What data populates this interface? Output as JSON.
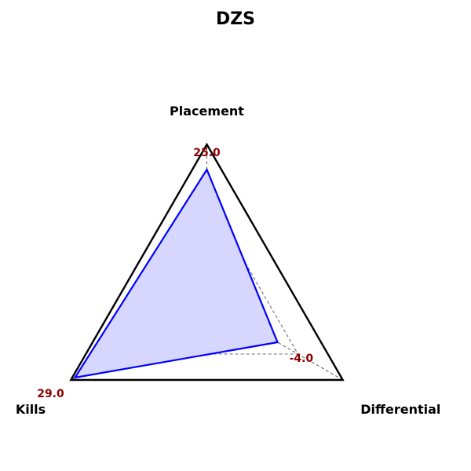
{
  "chart_data": {
    "type": "radar",
    "title": "DZS",
    "axes": [
      "Placement",
      "Differential",
      "Kills"
    ],
    "values": [
      25.0,
      -4.0,
      29.0
    ],
    "value_labels": [
      "25.0",
      "-4.0",
      "29.0"
    ],
    "normalized_values": [
      0.84,
      0.52,
      0.97
    ],
    "grid_levels": [
      0.0,
      0.33,
      0.67,
      1.0
    ],
    "grid": true,
    "series_color": "#0000ff",
    "fill_color": "#d6d6ff",
    "outline_color": "#000000",
    "grid_color": "#6e6e6e",
    "value_label_color": "#8b0000"
  }
}
